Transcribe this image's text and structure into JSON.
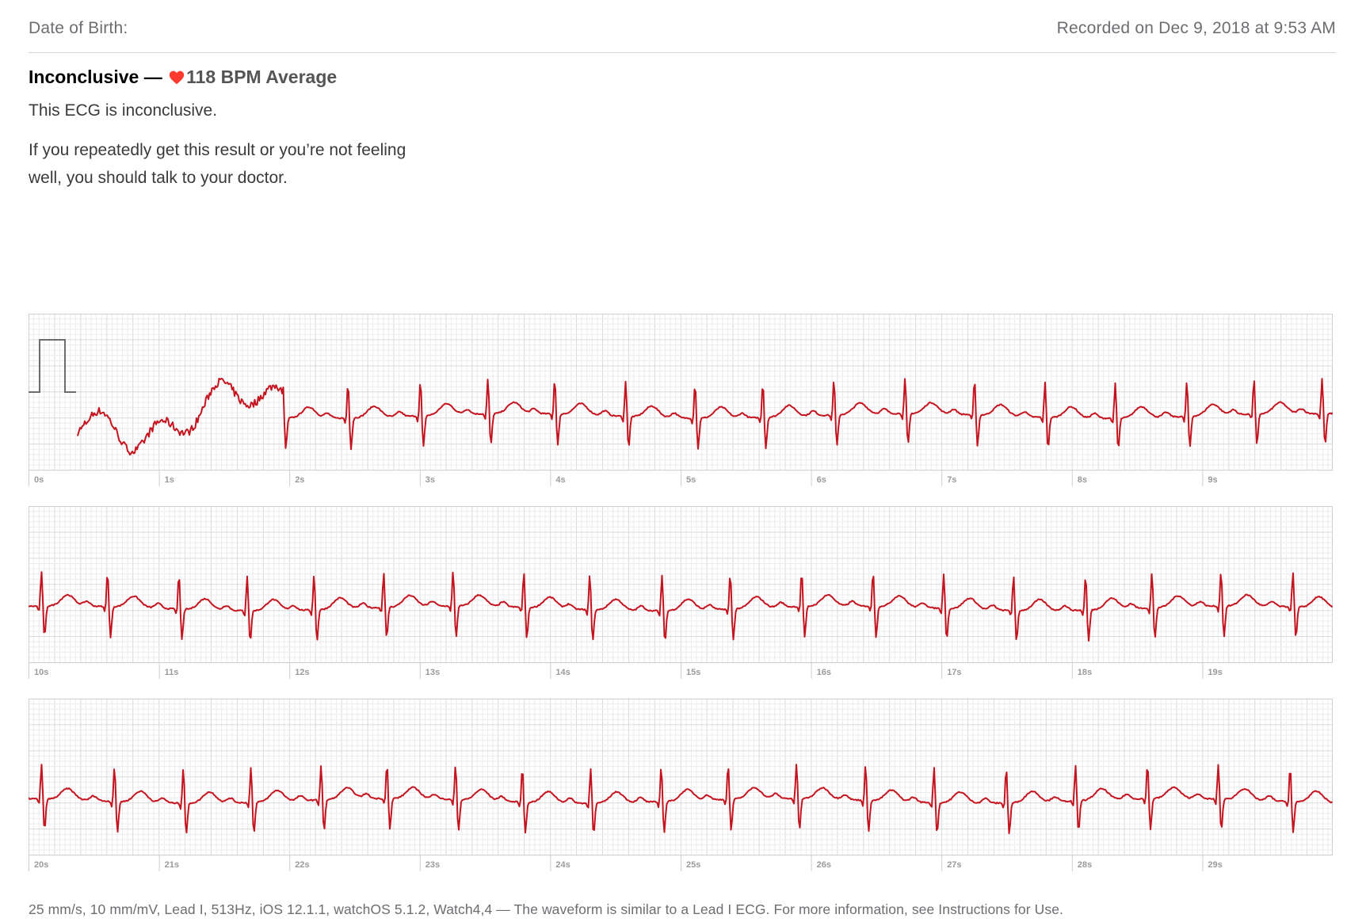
{
  "header": {
    "dob_label": "Date of Birth:",
    "recorded": "Recorded on Dec 9, 2018 at 9:53 AM"
  },
  "result": {
    "classification": "Inconclusive",
    "separator": " — ",
    "bpm_text": "118 BPM Average",
    "summary": "This ECG is inconclusive.",
    "advice": "If you repeatedly get this result or you’re not feeling well, you should talk to your doctor."
  },
  "colors": {
    "trace": "#c4141f",
    "heart": "#ff3b30",
    "grid_minor": "#ececec",
    "grid_major": "#d9d9d9",
    "calibration": "#6d6d6d"
  },
  "strips": [
    {
      "seconds": [
        "0s",
        "1s",
        "2s",
        "3s",
        "4s",
        "5s",
        "6s",
        "7s",
        "8s",
        "9s"
      ]
    },
    {
      "seconds": [
        "10s",
        "11s",
        "12s",
        "13s",
        "14s",
        "15s",
        "16s",
        "17s",
        "18s",
        "19s"
      ]
    },
    {
      "seconds": [
        "20s",
        "21s",
        "22s",
        "23s",
        "24s",
        "25s",
        "26s",
        "27s",
        "28s",
        "29s"
      ]
    }
  ],
  "footer": "25 mm/s, 10 mm/mV, Lead I, 513Hz, iOS 12.1.1, watchOS 5.1.2, Watch4,4 — The waveform is similar to a Lead I ECG. For more information, see Instructions for Use."
}
